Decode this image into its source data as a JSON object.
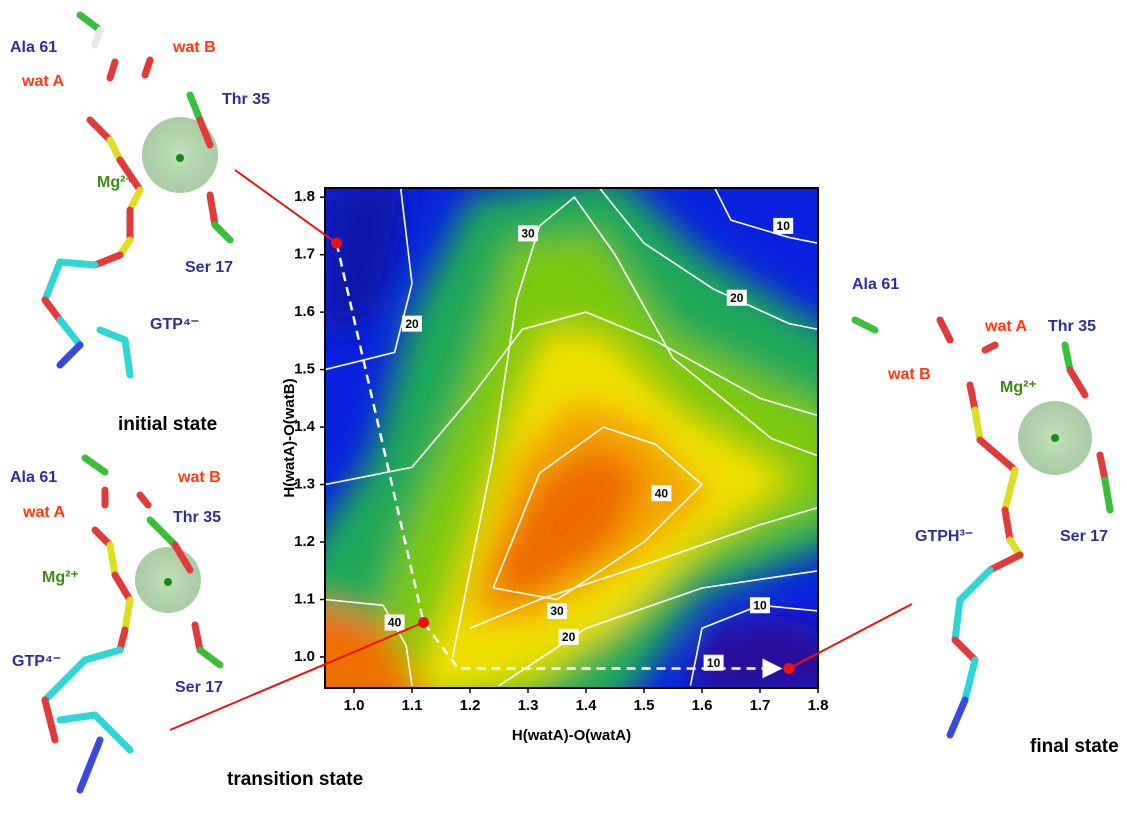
{
  "chart_data": {
    "type": "contour",
    "xlabel": "H(watA)-O(watA)",
    "ylabel": "H(watA)-O(watB)",
    "xlim": [
      0.95,
      1.8
    ],
    "ylim": [
      0.946,
      1.816
    ],
    "xticks": [
      {
        "value": 1.0,
        "label": "1.0"
      },
      1.1,
      1.2,
      1.3,
      1.4,
      1.5,
      1.6,
      1.7,
      1.8
    ],
    "yticks": [
      {
        "value": 1.0,
        "label": "1.0"
      },
      1.1,
      1.2,
      1.3,
      1.4,
      1.5,
      1.6,
      1.7,
      1.8
    ],
    "contour_labels": [
      {
        "value": 10,
        "x": 1.74,
        "y": 1.75
      },
      {
        "value": 20,
        "x": 1.66,
        "y": 1.625
      },
      {
        "value": 30,
        "x": 1.3,
        "y": 1.737
      },
      {
        "value": 20,
        "x": 1.1,
        "y": 1.58
      },
      {
        "value": 40,
        "x": 1.53,
        "y": 1.285
      },
      {
        "value": 30,
        "x": 1.35,
        "y": 1.08
      },
      {
        "value": 20,
        "x": 1.37,
        "y": 1.035
      },
      {
        "value": 10,
        "x": 1.7,
        "y": 1.09
      },
      {
        "value": 10,
        "x": 1.62,
        "y": 0.99
      },
      {
        "value": 40,
        "x": 1.07,
        "y": 1.06
      }
    ],
    "path": {
      "x": [
        0.97,
        1.12,
        1.18,
        1.73
      ],
      "y": [
        1.72,
        1.06,
        0.98,
        0.98
      ]
    },
    "points": {
      "x": [
        0.97,
        1.12,
        1.75
      ],
      "y": [
        1.72,
        1.06,
        0.98
      ],
      "color": "#ee1111"
    }
  },
  "molecules": [
    {
      "labels": [
        "Ala 61",
        "wat A",
        "wat B",
        "Thr 35",
        "Mg²⁺",
        "Ser 17",
        "GTP⁴⁻"
      ],
      "caption": "initial state"
    },
    {
      "labels": [
        "Ala 61",
        "wat B",
        "wat A",
        "Thr 35",
        "Mg²⁺",
        "GTP⁴⁻",
        "Ser 17"
      ],
      "caption": "transition  state"
    },
    {
      "labels": [
        "Ala 61",
        "wat A",
        "Thr 35",
        "wat B",
        "Mg²⁺",
        "GTPH³⁻",
        "Ser 17"
      ],
      "caption": "final state"
    }
  ]
}
